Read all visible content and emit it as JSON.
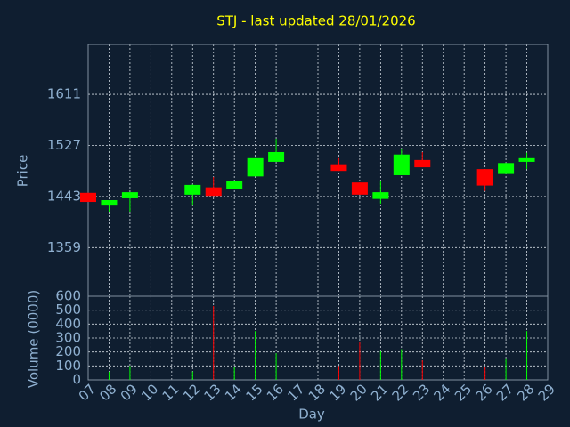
{
  "chart_data": {
    "type": "candlestick",
    "title": "STJ - last updated 28/01/2026",
    "xlabel": "Day",
    "ylabel": "Price",
    "categories": [
      "07",
      "08",
      "09",
      "10",
      "11",
      "12",
      "13",
      "14",
      "15",
      "16",
      "17",
      "18",
      "19",
      "20",
      "21",
      "22",
      "23",
      "24",
      "25",
      "26",
      "27",
      "28",
      "29"
    ],
    "open": [
      1449,
      1428,
      1440,
      null,
      null,
      1446,
      1458,
      1455,
      1476,
      1500,
      null,
      null,
      1496,
      1466,
      1439,
      1478,
      1503,
      null,
      null,
      1488,
      1480,
      1500,
      null
    ],
    "high": [
      1449,
      1437,
      1450,
      null,
      null,
      1463,
      1475,
      1469,
      1506,
      1538,
      null,
      null,
      1506,
      1466,
      1469,
      1522,
      1516,
      null,
      null,
      1488,
      1498,
      1515,
      null
    ],
    "low": [
      1434,
      1418,
      1418,
      null,
      null,
      1428,
      1444,
      1455,
      1476,
      1500,
      null,
      null,
      1485,
      1446,
      1431,
      1478,
      1491,
      null,
      null,
      1452,
      1480,
      1488,
      null
    ],
    "close": [
      1434,
      1437,
      1450,
      null,
      null,
      1462,
      1444,
      1469,
      1506,
      1516,
      null,
      null,
      1485,
      1446,
      1450,
      1512,
      1491,
      null,
      null,
      1461,
      1498,
      1506,
      null
    ],
    "up_color": "#00ff00",
    "down_color": "#ff0000",
    "ylim": [
      1279,
      1693
    ],
    "yticks": [
      1359,
      1443,
      1527,
      1611
    ],
    "grid": true,
    "volume": {
      "ylabel": "Volume (0000)",
      "values": [
        null,
        58,
        100,
        null,
        null,
        60,
        530,
        90,
        350,
        190,
        null,
        null,
        100,
        270,
        205,
        220,
        140,
        null,
        null,
        90,
        155,
        350,
        null
      ],
      "ylim": [
        0,
        600
      ],
      "yticks": [
        0,
        100,
        200,
        300,
        400,
        500,
        600
      ]
    }
  }
}
